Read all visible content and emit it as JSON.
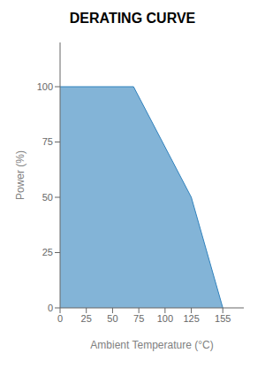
{
  "chart_data": {
    "type": "area",
    "title": "DERATING CURVE",
    "xlabel": "Ambient Temperature (°C)",
    "ylabel": "Power (%)",
    "x": [
      0,
      70,
      125,
      155
    ],
    "values": [
      100,
      100,
      50,
      0
    ],
    "xlim": [
      0,
      175
    ],
    "ylim": [
      0,
      120
    ],
    "xticks": [
      0,
      25,
      50,
      75,
      100,
      125,
      155
    ],
    "yticks": [
      0,
      25,
      50,
      75,
      100
    ],
    "grid": false
  }
}
